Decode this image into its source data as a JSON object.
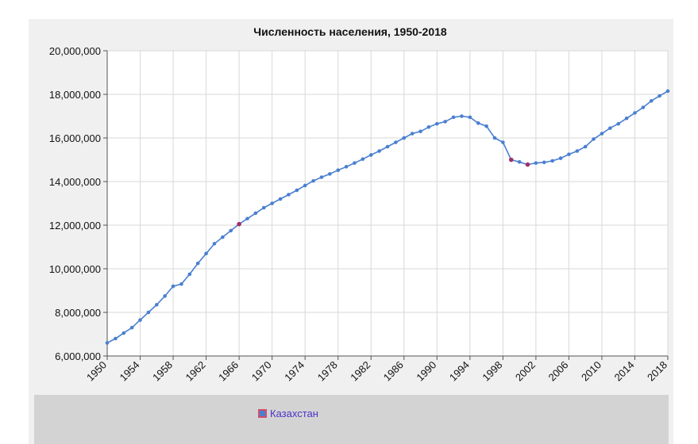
{
  "chart_data": {
    "type": "line",
    "title": "Численность населения, 1950-2018",
    "xlabel": "",
    "ylabel": "",
    "xlim": [
      1950,
      2018
    ],
    "ylim": [
      6000000,
      20000000
    ],
    "yticks": [
      6000000,
      8000000,
      10000000,
      12000000,
      14000000,
      16000000,
      18000000,
      20000000
    ],
    "ytick_labels": [
      "6,000,000",
      "8,000,000",
      "10,000,000",
      "12,000,000",
      "14,000,000",
      "16,000,000",
      "18,000,000",
      "20,000,000"
    ],
    "xticks": [
      1950,
      1954,
      1958,
      1962,
      1966,
      1970,
      1974,
      1978,
      1982,
      1986,
      1990,
      1994,
      1998,
      2002,
      2006,
      2010,
      2014,
      2018
    ],
    "xtick_labels": [
      "1950",
      "1954",
      "1958",
      "1962",
      "1966",
      "1970",
      "1974",
      "1978",
      "1982",
      "1986",
      "1990",
      "1994",
      "1998",
      "2002",
      "2006",
      "2010",
      "2014",
      "2018"
    ],
    "grid": true,
    "legend_position": "bottom",
    "line_color": "#4a7fd0",
    "highlight_color": "#a0306a",
    "highlighted_years": [
      1966,
      1999,
      2001
    ],
    "series": [
      {
        "name": "Казахстан",
        "x": [
          1950,
          1951,
          1952,
          1953,
          1954,
          1955,
          1956,
          1957,
          1958,
          1959,
          1960,
          1961,
          1962,
          1963,
          1964,
          1965,
          1966,
          1967,
          1968,
          1969,
          1970,
          1971,
          1972,
          1973,
          1974,
          1975,
          1976,
          1977,
          1978,
          1979,
          1980,
          1981,
          1982,
          1983,
          1984,
          1985,
          1986,
          1987,
          1988,
          1989,
          1990,
          1991,
          1992,
          1993,
          1994,
          1995,
          1996,
          1997,
          1998,
          1999,
          2000,
          2001,
          2002,
          2003,
          2004,
          2005,
          2006,
          2007,
          2008,
          2009,
          2010,
          2011,
          2012,
          2013,
          2014,
          2015,
          2016,
          2017,
          2018
        ],
        "values": [
          6600000,
          6800000,
          7050000,
          7300000,
          7650000,
          8000000,
          8350000,
          8750000,
          9200000,
          9300000,
          9750000,
          10250000,
          10700000,
          11150000,
          11450000,
          11750000,
          12050000,
          12300000,
          12550000,
          12800000,
          13000000,
          13200000,
          13400000,
          13600000,
          13820000,
          14030000,
          14200000,
          14350000,
          14520000,
          14680000,
          14850000,
          15030000,
          15220000,
          15400000,
          15600000,
          15800000,
          16000000,
          16200000,
          16300000,
          16500000,
          16650000,
          16750000,
          16950000,
          17000000,
          16950000,
          16680000,
          16540000,
          16000000,
          15800000,
          15000000,
          14900000,
          14780000,
          14850000,
          14880000,
          14950000,
          15070000,
          15250000,
          15400000,
          15600000,
          15950000,
          16200000,
          16450000,
          16650000,
          16900000,
          17150000,
          17400000,
          17700000,
          17930000,
          18150000
        ]
      }
    ]
  }
}
